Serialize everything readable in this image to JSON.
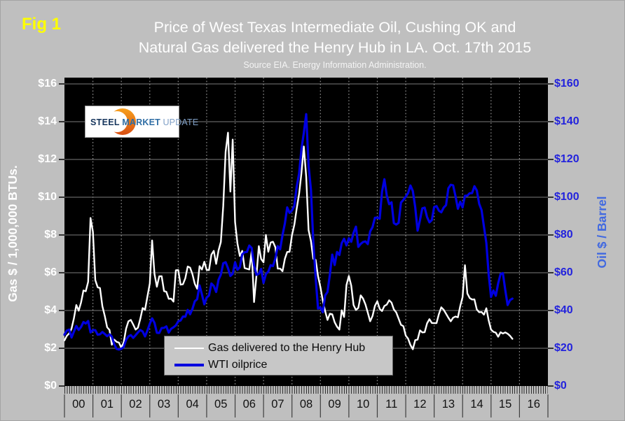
{
  "fig_label": "Fig 1",
  "title": {
    "line1": "Price of West Texas Intermediate Oil, Cushing OK and",
    "line2": "Natural Gas delivered the Henry Hub in LA. Oct. 17th 2015",
    "subtitle": "Source EIA. Energy Information Administration."
  },
  "logo": {
    "steel": "STEEL",
    "market": "MARKET",
    "update": "UPDATE"
  },
  "colors": {
    "background": "#bfbfbf",
    "plot_background": "#000000",
    "gas_line": "#ffffff",
    "oil_line": "#0000e0",
    "oil_tick_text": "#2222dd",
    "oil_axis_title": "#4169e1",
    "gridline": "#7d7d7d",
    "fig_label": "#ffff00"
  },
  "chart_data": {
    "type": "line",
    "title": "Price of West Texas Intermediate Oil, Cushing OK and Natural Gas delivered the Henry Hub in LA. Oct. 17th 2015",
    "subtitle": "Source EIA. Energy Information Administration.",
    "x_unit": "monthly",
    "x_start_year": 2000,
    "x_end_year": 2017,
    "x_tick_labels": [
      "00",
      "01",
      "02",
      "03",
      "04",
      "05",
      "06",
      "07",
      "08",
      "09",
      "10",
      "11",
      "12",
      "13",
      "14",
      "15",
      "16"
    ],
    "y_left": {
      "label": "Gas $ / 1,000,000 BTUs.",
      "range": [
        0,
        16
      ],
      "tick_step": 2,
      "tick_labels_top_to_bottom": [
        "$16",
        "$14",
        "$12",
        "$10",
        "$8",
        "$6",
        "$4",
        "$2",
        "$0"
      ]
    },
    "y_right": {
      "label": "Oil $ / Barrel",
      "range": [
        0,
        160
      ],
      "tick_step": 20,
      "tick_labels_top_to_bottom": [
        "$160",
        "$140",
        "$120",
        "$100",
        "$80",
        "$60",
        "$40",
        "$20",
        "$0"
      ]
    },
    "grid": {
      "horizontal": "solid",
      "vertical": "dotted-yearly"
    },
    "legend_position": "bottom-center-inside",
    "series": [
      {
        "name": "Gas delivered to the Henry Hub",
        "axis": "left",
        "color": "#ffffff",
        "stroke_width": 2.4,
        "values": [
          2.42,
          2.66,
          2.79,
          3.04,
          3.59,
          4.29,
          3.99,
          4.43,
          5.06,
          5.02,
          5.52,
          8.9,
          8.17,
          5.61,
          5.23,
          5.19,
          4.23,
          3.72,
          3.11,
          2.97,
          2.19,
          2.46,
          2.34,
          2.3,
          2.02,
          2.32,
          3.03,
          3.43,
          3.5,
          3.26,
          2.99,
          3.09,
          3.55,
          4.13,
          4.04,
          4.74,
          5.43,
          7.71,
          5.93,
          5.26,
          5.81,
          5.82,
          5.03,
          4.99,
          4.62,
          4.63,
          4.47,
          6.13,
          6.14,
          5.37,
          5.39,
          5.71,
          6.33,
          6.27,
          5.93,
          5.41,
          5.15,
          6.35,
          6.17,
          6.58,
          6.15,
          6.14,
          6.96,
          7.16,
          6.47,
          7.18,
          7.63,
          9.53,
          12.4,
          13.42,
          10.3,
          13.05,
          8.69,
          7.54,
          6.89,
          7.16,
          6.25,
          6.21,
          6.17,
          7.14,
          4.45,
          5.85,
          7.41,
          6.73,
          6.55,
          8.0,
          7.11,
          7.6,
          7.64,
          7.35,
          6.22,
          6.22,
          6.08,
          6.74,
          7.1,
          7.11,
          7.99,
          8.54,
          9.41,
          10.18,
          11.27,
          12.69,
          11.09,
          8.26,
          7.67,
          6.74,
          6.68,
          5.82,
          5.24,
          4.52,
          3.96,
          3.5,
          3.83,
          3.8,
          3.38,
          3.14,
          2.99,
          4.01,
          3.66,
          5.35,
          5.83,
          5.32,
          4.29,
          4.03,
          4.14,
          4.8,
          4.63,
          4.32,
          3.89,
          3.43,
          3.71,
          4.25,
          4.49,
          4.09,
          3.97,
          4.24,
          4.31,
          4.54,
          4.42,
          4.06,
          3.9,
          3.57,
          3.24,
          3.17,
          2.67,
          2.51,
          2.17,
          1.95,
          2.43,
          2.46,
          2.95,
          2.84,
          2.85,
          3.32,
          3.54,
          3.34,
          3.33,
          3.33,
          3.81,
          4.17,
          4.04,
          3.83,
          3.62,
          3.43,
          3.62,
          3.68,
          3.64,
          4.24,
          4.71,
          6.4,
          4.9,
          4.66,
          4.58,
          4.59,
          4.05,
          3.91,
          3.92,
          3.78,
          4.12,
          3.48,
          2.99,
          2.87,
          2.83,
          2.61,
          2.85,
          2.78,
          2.84,
          2.77,
          2.66,
          2.5
        ]
      },
      {
        "name": "WTI oilprice",
        "axis": "right",
        "color": "#0000e0",
        "stroke_width": 3.2,
        "values": [
          27.2,
          29.4,
          29.9,
          25.7,
          28.8,
          31.8,
          29.7,
          31.3,
          33.9,
          33.1,
          34.4,
          28.4,
          29.6,
          29.6,
          27.2,
          27.4,
          28.6,
          27.6,
          26.4,
          27.4,
          26.2,
          22.2,
          19.7,
          19.3,
          19.7,
          20.7,
          24.4,
          26.3,
          27.0,
          25.5,
          26.9,
          28.4,
          29.7,
          28.9,
          26.3,
          29.4,
          33.0,
          35.8,
          33.5,
          28.2,
          28.1,
          30.7,
          30.8,
          31.6,
          28.3,
          30.3,
          31.1,
          32.1,
          34.3,
          34.7,
          36.8,
          36.7,
          40.3,
          38.0,
          40.8,
          44.9,
          46.0,
          53.3,
          48.5,
          43.3,
          46.8,
          48.0,
          54.3,
          53.0,
          49.8,
          56.3,
          59.0,
          65.0,
          65.6,
          62.4,
          58.3,
          59.4,
          65.5,
          61.6,
          62.9,
          69.7,
          70.9,
          71.0,
          74.4,
          73.1,
          63.9,
          58.9,
          59.4,
          62.0,
          54.6,
          59.3,
          60.6,
          64.0,
          63.5,
          67.5,
          74.1,
          72.4,
          79.9,
          86.2,
          94.6,
          91.7,
          93.0,
          95.4,
          105.6,
          112.6,
          125.4,
          134.0,
          144.0,
          116.6,
          103.9,
          76.7,
          57.4,
          41.0,
          41.7,
          39.1,
          48.0,
          49.8,
          59.0,
          69.6,
          64.1,
          71.0,
          69.4,
          75.7,
          78.0,
          74.5,
          78.3,
          76.4,
          81.2,
          84.4,
          73.7,
          75.3,
          76.3,
          76.6,
          75.2,
          81.9,
          84.2,
          89.1,
          89.2,
          88.6,
          102.9,
          109.5,
          100.9,
          96.3,
          97.3,
          86.3,
          85.5,
          86.4,
          97.2,
          98.6,
          100.3,
          102.2,
          106.2,
          103.3,
          94.7,
          82.3,
          87.9,
          94.1,
          94.5,
          89.5,
          86.7,
          87.9,
          94.8,
          95.3,
          92.9,
          92.0,
          94.5,
          95.8,
          104.7,
          106.6,
          106.3,
          100.5,
          93.9,
          97.6,
          94.6,
          100.8,
          100.8,
          102.1,
          102.2,
          105.8,
          103.6,
          96.5,
          93.2,
          84.4,
          75.8,
          59.3,
          47.2,
          50.6,
          47.8,
          54.4,
          59.3,
          59.8,
          50.9,
          42.9,
          45.5,
          46.3
        ]
      }
    ]
  }
}
